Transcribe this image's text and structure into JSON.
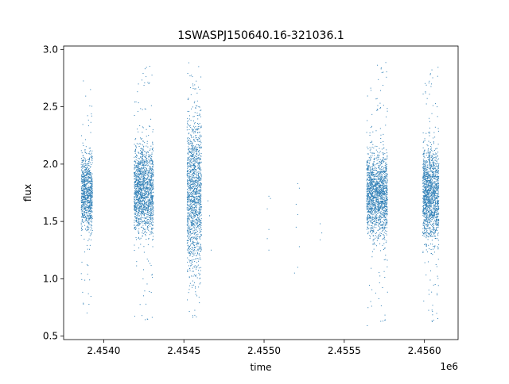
{
  "chart_data": {
    "type": "scatter",
    "title": "1SWASPJ150640.16-321036.1",
    "xlabel": "time",
    "ylabel": "flux",
    "x_offset_label": "1e6",
    "xlim": [
      2.45375,
      2.45621
    ],
    "ylim": [
      0.47,
      3.03
    ],
    "x_ticks": [
      {
        "value": 2.454,
        "label": "2.4540"
      },
      {
        "value": 2.4545,
        "label": "2.4545"
      },
      {
        "value": 2.455,
        "label": "2.4550"
      },
      {
        "value": 2.4555,
        "label": "2.4555"
      },
      {
        "value": 2.456,
        "label": "2.4560"
      }
    ],
    "y_ticks": [
      {
        "value": 0.5,
        "label": "0.5"
      },
      {
        "value": 1.0,
        "label": "1.0"
      },
      {
        "value": 1.5,
        "label": "1.5"
      },
      {
        "value": 2.0,
        "label": "2.0"
      },
      {
        "value": 2.5,
        "label": "2.5"
      },
      {
        "value": 3.0,
        "label": "3.0"
      }
    ],
    "series_color": "#2f7fb6",
    "clusters": [
      {
        "x_start": 2.45386,
        "x_end": 2.45393,
        "y_center": 1.75,
        "y_spread": 0.16,
        "y_min": 0.65,
        "y_max": 2.87,
        "n": 900
      },
      {
        "x_start": 2.45419,
        "x_end": 2.45431,
        "y_center": 1.78,
        "y_spread": 0.19,
        "y_min": 0.61,
        "y_max": 2.86,
        "n": 1600
      },
      {
        "x_start": 2.45452,
        "x_end": 2.45461,
        "y_center": 1.75,
        "y_spread": 0.33,
        "y_min": 0.6,
        "y_max": 2.92,
        "n": 1400
      },
      {
        "x_start": 2.45564,
        "x_end": 2.45577,
        "y_center": 1.74,
        "y_spread": 0.18,
        "y_min": 0.59,
        "y_max": 2.89,
        "n": 1700
      },
      {
        "x_start": 2.45599,
        "x_end": 2.45609,
        "y_center": 1.74,
        "y_spread": 0.2,
        "y_min": 0.6,
        "y_max": 2.85,
        "n": 1500
      }
    ],
    "sparse_points": [
      {
        "x": 2.45465,
        "y": 1.68
      },
      {
        "x": 2.45466,
        "y": 1.55
      },
      {
        "x": 2.45467,
        "y": 1.25
      },
      {
        "x": 2.45503,
        "y": 1.72
      },
      {
        "x": 2.45504,
        "y": 1.7
      },
      {
        "x": 2.45502,
        "y": 1.61
      },
      {
        "x": 2.45503,
        "y": 1.43
      },
      {
        "x": 2.45502,
        "y": 1.35
      },
      {
        "x": 2.45503,
        "y": 1.25
      },
      {
        "x": 2.45521,
        "y": 1.83
      },
      {
        "x": 2.45522,
        "y": 1.79
      },
      {
        "x": 2.4552,
        "y": 1.65
      },
      {
        "x": 2.45521,
        "y": 1.56
      },
      {
        "x": 2.4552,
        "y": 1.45
      },
      {
        "x": 2.45522,
        "y": 1.28
      },
      {
        "x": 2.45519,
        "y": 1.05
      },
      {
        "x": 2.45521,
        "y": 1.1
      },
      {
        "x": 2.45535,
        "y": 1.48
      },
      {
        "x": 2.45536,
        "y": 1.4
      },
      {
        "x": 2.45535,
        "y": 1.34
      }
    ]
  }
}
